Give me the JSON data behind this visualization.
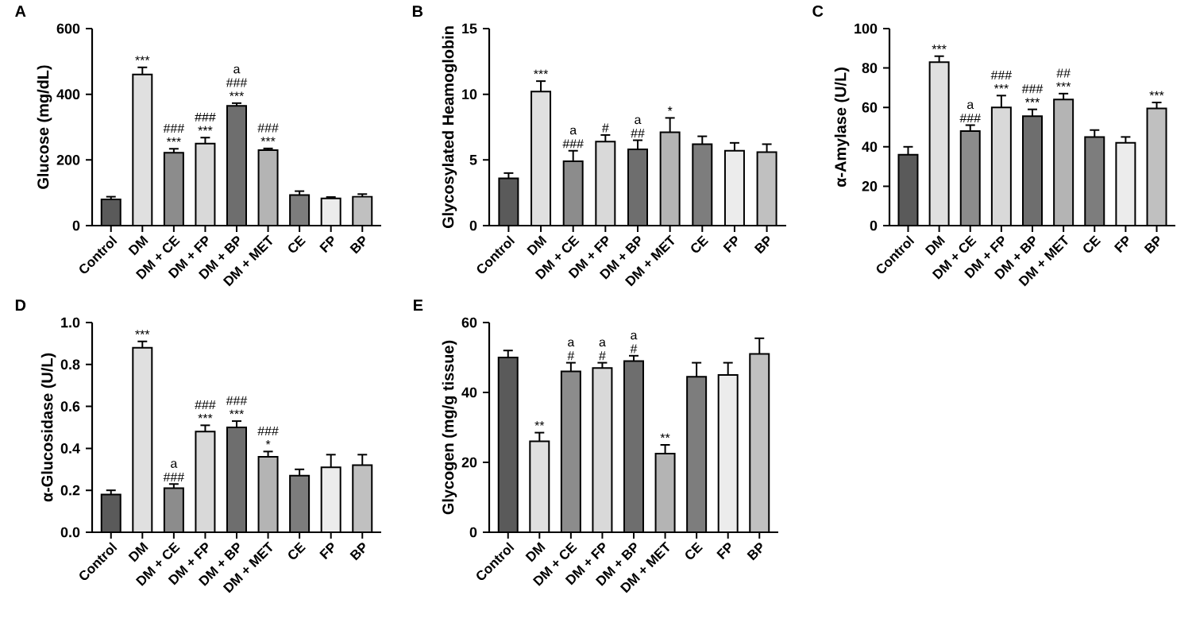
{
  "chart_data": [
    {
      "type": "bar",
      "title": "A",
      "ylabel": "Glucose (mg/dL)",
      "categories": [
        "Control",
        "DM",
        "DM + CE",
        "DM + FP",
        "DM + BP",
        "DM + MET",
        "CE",
        "FP",
        "BP"
      ],
      "values": [
        80,
        460,
        222,
        250,
        365,
        230,
        93,
        83,
        88
      ],
      "errors": [
        8,
        22,
        12,
        18,
        8,
        5,
        12,
        4,
        8
      ],
      "colors": [
        "#5a5a5a",
        "#e0e0e0",
        "#8c8c8c",
        "#d9d9d9",
        "#6e6e6e",
        "#b4b4b4",
        "#7d7d7d",
        "#ececec",
        "#c0c0c0"
      ],
      "ylim": [
        0,
        600
      ],
      "yticks": [
        0,
        200,
        400,
        600
      ],
      "annotations": [
        {
          "text": "***",
          "x": "DM",
          "y": 482
        },
        {
          "text": "***",
          "x": "DM + CE",
          "y": 234
        },
        {
          "text": "###",
          "x": "DM + CE",
          "y": 234
        },
        {
          "text": "***",
          "x": "DM + FP",
          "y": 268
        },
        {
          "text": "###",
          "x": "DM + FP",
          "y": 268
        },
        {
          "text": "***",
          "x": "DM + BP",
          "y": 373
        },
        {
          "text": "###",
          "x": "DM + BP",
          "y": 373
        },
        {
          "text": "a",
          "x": "DM + BP",
          "y": 373
        },
        {
          "text": "***",
          "x": "DM + MET",
          "y": 235
        },
        {
          "text": "###",
          "x": "DM + MET",
          "y": 235
        }
      ]
    },
    {
      "type": "bar",
      "title": "B",
      "ylabel": "Glycosylated Heamoglobin",
      "categories": [
        "Control",
        "DM",
        "DM + CE",
        "DM + FP",
        "DM + BP",
        "DM + MET",
        "CE",
        "FP",
        "BP"
      ],
      "values": [
        3.6,
        10.2,
        4.9,
        6.4,
        5.8,
        7.1,
        6.2,
        5.7,
        5.6
      ],
      "errors": [
        0.4,
        0.8,
        0.8,
        0.5,
        0.7,
        1.1,
        0.6,
        0.6,
        0.6
      ],
      "colors": [
        "#5a5a5a",
        "#e0e0e0",
        "#8c8c8c",
        "#d9d9d9",
        "#6e6e6e",
        "#b4b4b4",
        "#7d7d7d",
        "#ececec",
        "#c0c0c0"
      ],
      "ylim": [
        0,
        15
      ],
      "yticks": [
        0,
        5,
        10,
        15
      ],
      "annotations": [
        {
          "text": "***",
          "x": "DM",
          "y": 11
        },
        {
          "text": "###",
          "x": "DM + CE",
          "y": 5.7
        },
        {
          "text": "a",
          "x": "DM + CE",
          "y": 5.7
        },
        {
          "text": "#",
          "x": "DM + FP",
          "y": 6.9
        },
        {
          "text": "##",
          "x": "DM + BP",
          "y": 6.5
        },
        {
          "text": "a",
          "x": "DM + BP",
          "y": 6.5
        },
        {
          "text": "*",
          "x": "DM + MET",
          "y": 8.2
        }
      ]
    },
    {
      "type": "bar",
      "title": "C",
      "ylabel": "α-Amylase (U/L)",
      "categories": [
        "Control",
        "DM",
        "DM + CE",
        "DM + FP",
        "DM + BP",
        "DM + MET",
        "CE",
        "FP",
        "BP"
      ],
      "values": [
        36,
        83,
        48,
        60,
        55.5,
        64,
        45,
        42,
        59.5
      ],
      "errors": [
        4,
        3,
        3,
        6,
        3.5,
        3,
        3.5,
        3,
        3
      ],
      "colors": [
        "#5a5a5a",
        "#e0e0e0",
        "#8c8c8c",
        "#d9d9d9",
        "#6e6e6e",
        "#b4b4b4",
        "#7d7d7d",
        "#ececec",
        "#c0c0c0"
      ],
      "ylim": [
        0,
        100
      ],
      "yticks": [
        0,
        20,
        40,
        60,
        80,
        100
      ],
      "annotations": [
        {
          "text": "***",
          "x": "DM",
          "y": 86
        },
        {
          "text": "###",
          "x": "DM + CE",
          "y": 51
        },
        {
          "text": "a",
          "x": "DM + CE",
          "y": 51
        },
        {
          "text": "***",
          "x": "DM + FP",
          "y": 66
        },
        {
          "text": "###",
          "x": "DM + FP",
          "y": 66
        },
        {
          "text": "***",
          "x": "DM + BP",
          "y": 59
        },
        {
          "text": "###",
          "x": "DM + BP",
          "y": 59
        },
        {
          "text": "***",
          "x": "DM + MET",
          "y": 67
        },
        {
          "text": "##",
          "x": "DM + MET",
          "y": 67
        },
        {
          "text": "***",
          "x": "BP",
          "y": 62.5
        }
      ]
    },
    {
      "type": "bar",
      "title": "D",
      "ylabel": "α-Glucosidase (U/L)",
      "categories": [
        "Control",
        "DM",
        "DM + CE",
        "DM + FP",
        "DM + BP",
        "DM + MET",
        "CE",
        "FP",
        "BP"
      ],
      "values": [
        0.18,
        0.88,
        0.21,
        0.48,
        0.5,
        0.36,
        0.27,
        0.31,
        0.32
      ],
      "errors": [
        0.02,
        0.03,
        0.02,
        0.03,
        0.03,
        0.025,
        0.03,
        0.06,
        0.05
      ],
      "colors": [
        "#5a5a5a",
        "#e0e0e0",
        "#8c8c8c",
        "#d9d9d9",
        "#6e6e6e",
        "#b4b4b4",
        "#7d7d7d",
        "#ececec",
        "#c0c0c0"
      ],
      "ylim": [
        0,
        1
      ],
      "yticks": [
        {
          "value": 0,
          "label": "0.0"
        },
        0.2,
        0.4,
        0.6,
        0.8,
        {
          "value": 1,
          "label": "1.0"
        }
      ],
      "annotations": [
        {
          "text": "***",
          "x": "DM",
          "y": 0.91
        },
        {
          "text": "###",
          "x": "DM + CE",
          "y": 0.23
        },
        {
          "text": "a",
          "x": "DM + CE",
          "y": 0.23
        },
        {
          "text": "***",
          "x": "DM + FP",
          "y": 0.51
        },
        {
          "text": "###",
          "x": "DM + FP",
          "y": 0.51
        },
        {
          "text": "***",
          "x": "DM + BP",
          "y": 0.53
        },
        {
          "text": "###",
          "x": "DM + BP",
          "y": 0.53
        },
        {
          "text": "*",
          "x": "DM + MET",
          "y": 0.385
        },
        {
          "text": "###",
          "x": "DM + MET",
          "y": 0.385
        }
      ]
    },
    {
      "type": "bar",
      "title": "E",
      "ylabel": "Glycogen (mg/g tissue)",
      "categories": [
        "Control",
        "DM",
        "DM + CE",
        "DM + FP",
        "DM + BP",
        "DM + MET",
        "CE",
        "FP",
        "BP"
      ],
      "values": [
        50,
        26,
        46,
        47,
        49,
        22.5,
        44.5,
        45,
        51
      ],
      "errors": [
        2,
        2.5,
        2.5,
        1.5,
        1.5,
        2.5,
        4,
        3.5,
        4.5
      ],
      "colors": [
        "#5a5a5a",
        "#e0e0e0",
        "#8c8c8c",
        "#d9d9d9",
        "#6e6e6e",
        "#b4b4b4",
        "#7d7d7d",
        "#ececec",
        "#c0c0c0"
      ],
      "ylim": [
        0,
        60
      ],
      "yticks": [
        0,
        20,
        40,
        60
      ],
      "annotations": [
        {
          "text": "**",
          "x": "DM",
          "y": 28.5
        },
        {
          "text": "#",
          "x": "DM + CE",
          "y": 48.5
        },
        {
          "text": "a",
          "x": "DM + CE",
          "y": 48.5
        },
        {
          "text": "#",
          "x": "DM + FP",
          "y": 48.5
        },
        {
          "text": "a",
          "x": "DM + FP",
          "y": 48.5
        },
        {
          "text": "#",
          "x": "DM + BP",
          "y": 50.5
        },
        {
          "text": "a",
          "x": "DM + BP",
          "y": 50.5
        },
        {
          "text": "**",
          "x": "DM + MET",
          "y": 25
        }
      ]
    }
  ]
}
